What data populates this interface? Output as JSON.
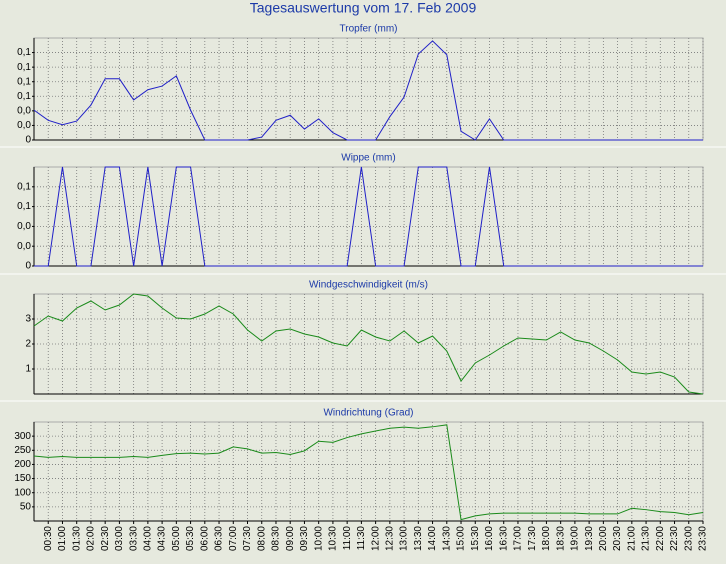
{
  "title": "Tagesauswertung vom 17. Feb 2009",
  "chart_data": [
    {
      "type": "line",
      "title": "Tropfer (mm)",
      "color": "#2020c8",
      "grid": true,
      "ylim": [
        0,
        0.14
      ],
      "yticks": [
        0,
        {
          "value": 0.02,
          "label": "0,0"
        },
        {
          "value": 0.04,
          "label": "0,0"
        },
        {
          "value": 0.06,
          "label": "0,1"
        },
        {
          "value": 0.08,
          "label": "0,1"
        },
        {
          "value": 0.1,
          "label": "0,1"
        },
        {
          "value": 0.12,
          "label": "0,1"
        }
      ],
      "values": [
        0.041,
        0.027,
        0.021,
        0.026,
        0.048,
        0.084,
        0.084,
        0.055,
        0.069,
        0.074,
        0.088,
        0.041,
        0,
        0,
        0,
        0,
        0.004,
        0.027,
        0.034,
        0.015,
        0.029,
        0.01,
        0,
        0,
        0,
        0.032,
        0.059,
        0.118,
        0.136,
        0.117,
        0.012,
        0,
        0.029,
        0,
        0,
        0,
        0,
        0,
        0,
        0,
        0,
        0,
        0,
        0,
        0,
        0,
        0,
        0
      ]
    },
    {
      "type": "line",
      "title": "Wippe (mm)",
      "color": "#2020c8",
      "grid": true,
      "ylim": [
        0,
        0.1
      ],
      "yticks": [
        0,
        {
          "value": 0.02,
          "label": "0,0"
        },
        {
          "value": 0.04,
          "label": "0,0"
        },
        {
          "value": 0.06,
          "label": "0,1"
        },
        {
          "value": 0.08,
          "label": "0,1"
        }
      ],
      "values": [
        0,
        0,
        0.1,
        0,
        0,
        0.1,
        0.1,
        0,
        0.1,
        0,
        0.1,
        0.1,
        0,
        0,
        0,
        0,
        0,
        0,
        0,
        0,
        0,
        0,
        0,
        0.1,
        0,
        0,
        0,
        0.1,
        0.1,
        0.1,
        0,
        0,
        0.1,
        0,
        0,
        0,
        0,
        0,
        0,
        0,
        0,
        0,
        0,
        0,
        0,
        0,
        0,
        0
      ]
    },
    {
      "type": "line",
      "title": "Windgeschwindigkeit (m/s)",
      "color": "#1a8a1a",
      "grid": true,
      "ylim": [
        0,
        4
      ],
      "yticks": [
        1,
        2,
        3
      ],
      "values": [
        2.72,
        3.12,
        2.92,
        3.44,
        3.72,
        3.36,
        3.56,
        4.0,
        3.92,
        3.44,
        3.04,
        3.0,
        3.2,
        3.52,
        3.2,
        2.56,
        2.12,
        2.52,
        2.6,
        2.4,
        2.28,
        2.04,
        1.92,
        2.56,
        2.28,
        2.12,
        2.52,
        2.04,
        2.32,
        1.72,
        0.52,
        1.24,
        1.56,
        1.92,
        2.24,
        2.2,
        2.16,
        2.48,
        2.16,
        2.04,
        1.72,
        1.36,
        0.88,
        0.8,
        0.88,
        0.68,
        0.08,
        0
      ]
    },
    {
      "type": "line",
      "title": "Windrichtung (Grad)",
      "color": "#1a8a1a",
      "grid": true,
      "ylim": [
        0,
        350
      ],
      "yticks": [
        50,
        100,
        150,
        200,
        250,
        300
      ],
      "categories": [
        null,
        "00:30",
        "01:00",
        "01:30",
        "02:00",
        "02:30",
        "03:00",
        "03:30",
        "04:00",
        "04:30",
        "05:00",
        "05:30",
        "06:00",
        "06:30",
        "07:00",
        "07:30",
        "08:00",
        "08:30",
        "09:00",
        "09:30",
        "10:00",
        "10:30",
        "11:00",
        "11:30",
        "12:00",
        "12:30",
        "13:00",
        "13:30",
        "14:00",
        "14:30",
        "15:00",
        "15:30",
        "16:00",
        "16:30",
        "17:00",
        "17:30",
        "18:00",
        "18:30",
        "19:00",
        "19:30",
        "20:00",
        "20:30",
        "21:00",
        "21:30",
        "22:00",
        "22:30",
        "23:00",
        "23:30"
      ],
      "values": [
        230,
        225,
        228,
        225,
        225,
        225,
        225,
        228,
        225,
        232,
        238,
        240,
        237,
        240,
        262,
        255,
        240,
        242,
        235,
        248,
        282,
        278,
        295,
        308,
        318,
        328,
        332,
        328,
        333,
        340,
        5,
        18,
        25,
        28,
        28,
        28,
        28,
        28,
        28,
        25,
        25,
        25,
        45,
        40,
        33,
        30,
        22,
        30
      ]
    }
  ]
}
